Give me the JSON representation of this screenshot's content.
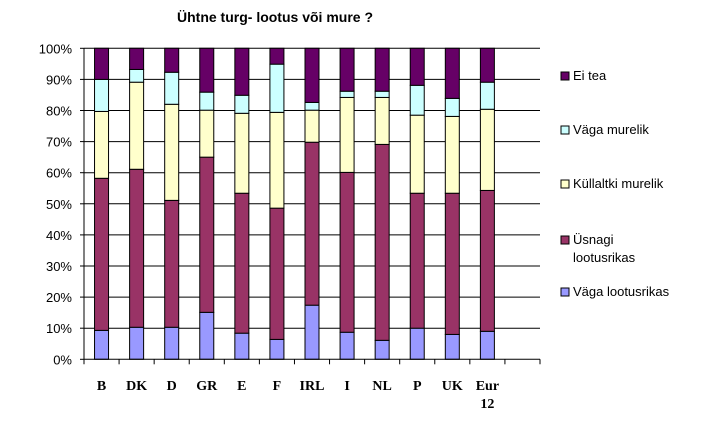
{
  "chart_data": {
    "type": "bar",
    "stacked": true,
    "title": "Ühtne turg- lootus või mure ?",
    "xlabel": "",
    "ylabel": "",
    "ylim": [
      0,
      100
    ],
    "y_ticks": [
      "0%",
      "10%",
      "20%",
      "30%",
      "40%",
      "50%",
      "60%",
      "70%",
      "80%",
      "90%",
      "100%"
    ],
    "grid": true,
    "legend_placement": "right",
    "categories": [
      "B",
      "DK",
      "D",
      "GR",
      "E",
      "F",
      "IRL",
      "I",
      "NL",
      "P",
      "UK",
      "Eur 12"
    ],
    "series": [
      {
        "name": "Väga lootusrikas",
        "color": "#9999FF",
        "values": [
          9.3,
          10.3,
          10.3,
          15.1,
          8.4,
          6.4,
          17.4,
          8.7,
          6.1,
          10.0,
          8.0,
          9.0
        ]
      },
      {
        "name": "Üsnagi lootusrikas",
        "color": "#993366",
        "values": [
          48.9,
          50.8,
          40.8,
          49.9,
          45.0,
          42.2,
          52.4,
          51.4,
          63.0,
          43.4,
          45.4,
          45.3
        ]
      },
      {
        "name": "Küllaltki murelik",
        "color": "#FFFFCC",
        "values": [
          21.5,
          28.0,
          30.9,
          15.1,
          25.7,
          30.8,
          10.3,
          24.1,
          15.1,
          25.1,
          24.7,
          26.1
        ]
      },
      {
        "name": "Väga murelik",
        "color": "#CCFFFF",
        "values": [
          10.3,
          4.1,
          10.3,
          5.8,
          5.8,
          15.5,
          2.5,
          2.0,
          2.0,
          9.6,
          5.8,
          8.7
        ]
      },
      {
        "name": "Ei tea",
        "color": "#660066",
        "values": [
          10.0,
          6.8,
          7.7,
          14.1,
          15.1,
          5.1,
          17.4,
          13.8,
          13.8,
          11.9,
          16.1,
          10.9
        ]
      }
    ]
  }
}
